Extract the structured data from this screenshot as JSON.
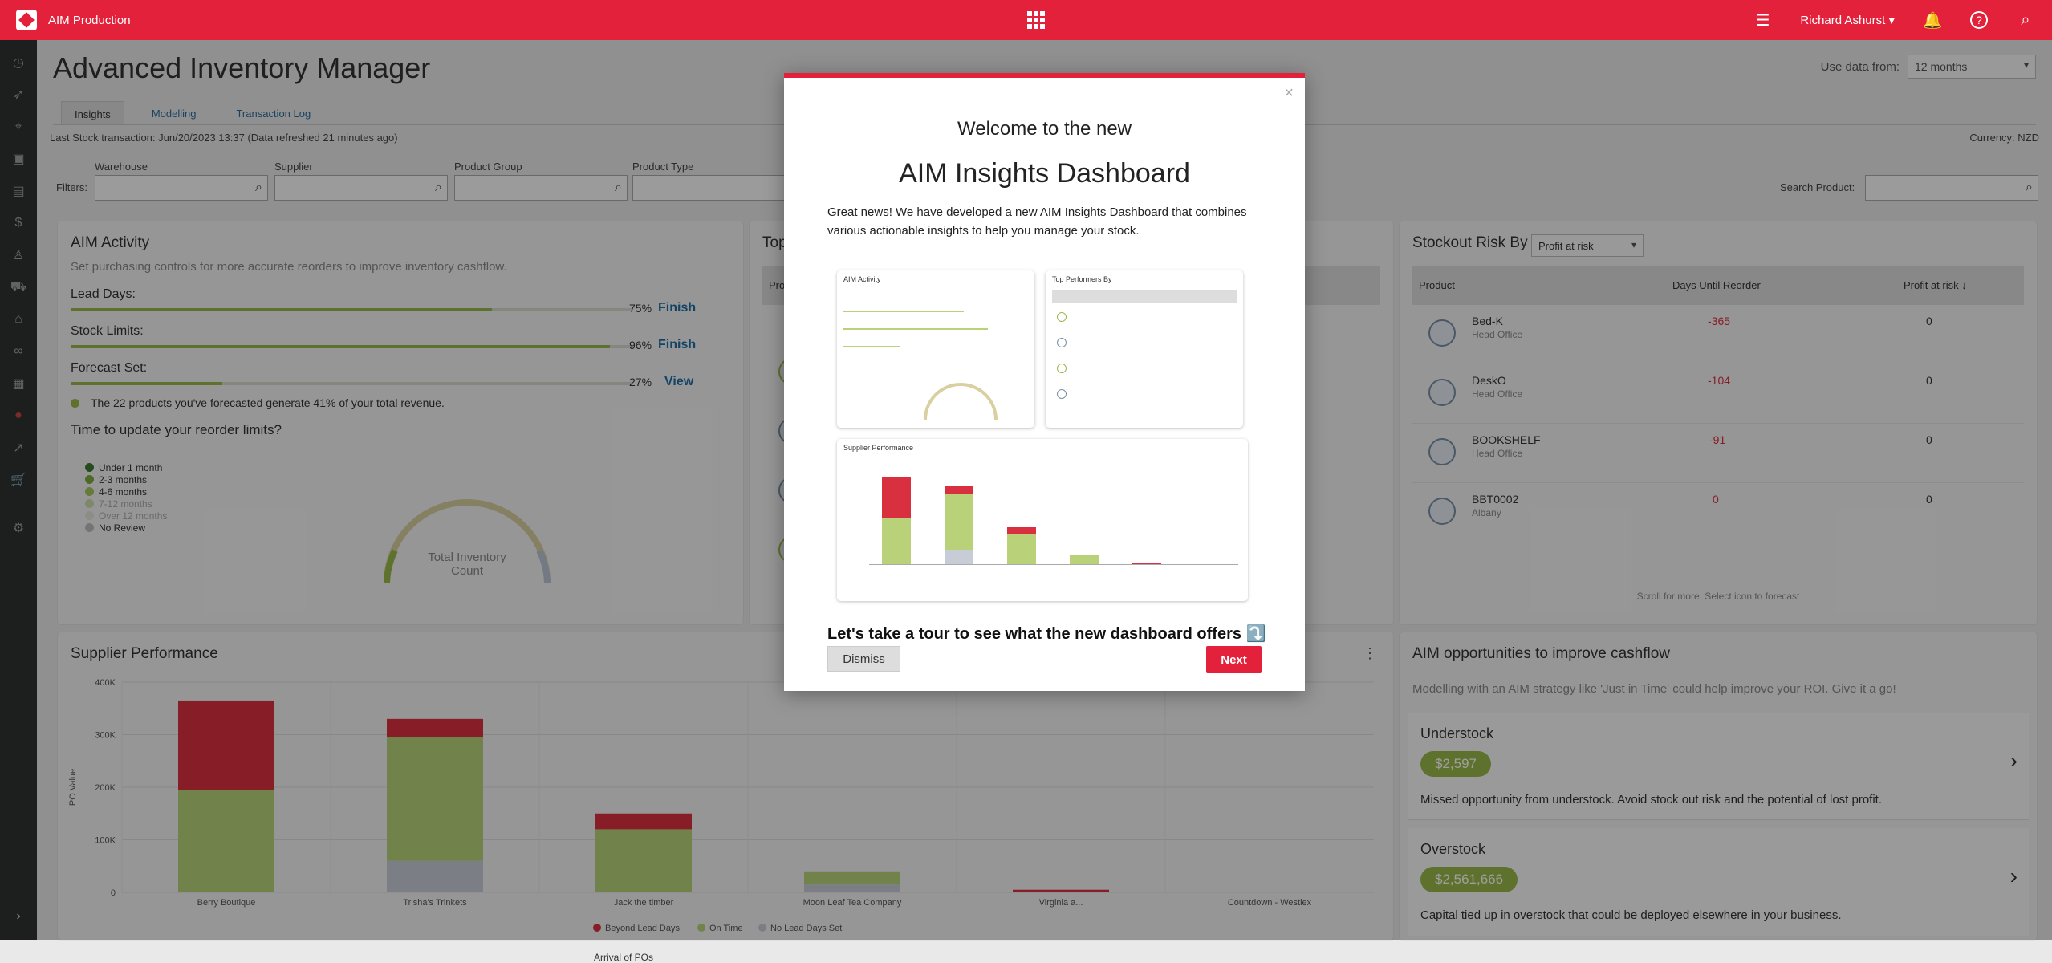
{
  "topbar": {
    "app_name": "AIM Production",
    "user_name": "Richard Ashurst",
    "icons": [
      "apps-grid-icon",
      "list-icon",
      "bell-icon",
      "help-icon",
      "search-icon"
    ]
  },
  "sidebar": {
    "icons": [
      "dashboard-icon",
      "rocket-icon",
      "telescope-icon",
      "box-icon",
      "warehouse-icon",
      "dollar-icon",
      "supplier-icon",
      "truck-icon",
      "store-icon",
      "link-icon",
      "table-icon",
      "status-icon",
      "chart-icon",
      "cart-icon",
      "gear-icon",
      "expand-icon"
    ]
  },
  "page": {
    "title": "Advanced Inventory Manager",
    "use_data_label": "Use data from:",
    "use_data_value": "12 months",
    "tabs": [
      {
        "label": "Insights",
        "active": true
      },
      {
        "label": "Modelling",
        "active": false
      },
      {
        "label": "Transaction Log",
        "active": false
      }
    ],
    "last_stock": "Last Stock transaction: Jun/20/2023 13:37 (Data refreshed 21 minutes ago)",
    "currency": "Currency:  NZD"
  },
  "filters": {
    "label": "Filters:",
    "fields": [
      "Warehouse",
      "Supplier",
      "Product Group",
      "Product Type"
    ],
    "search_label": "Search Product:"
  },
  "aim_activity": {
    "title": "AIM Activity",
    "subtitle": "Set purchasing controls for more accurate reorders to improve inventory cashflow.",
    "rows": [
      {
        "label": "Lead Days:",
        "pct": "75%",
        "pct_value": 0.75,
        "action": "Finish"
      },
      {
        "label": "Stock Limits:",
        "pct": "96%",
        "pct_value": 0.96,
        "action": "Finish"
      },
      {
        "label": "Forecast Set:",
        "pct": "27%",
        "pct_value": 0.27,
        "action": "View"
      }
    ],
    "forecast_note": "The 22 products you've forecasted generate 41% of your total revenue.",
    "reorder_title": "Time to update your reorder limits?",
    "legend": [
      "Under 1 month",
      "2-3 months",
      "4-6 months",
      "7-12 months",
      "Over 12 months",
      "No Review"
    ],
    "gauge_label": "Total Inventory Count"
  },
  "top_performers": {
    "title": "Top Performers By",
    "header": "Product"
  },
  "stockout": {
    "title": "Stockout Risk By",
    "select": "Profit at risk",
    "columns": [
      "Product",
      "Days Until Reorder",
      "Profit at risk ↓"
    ],
    "rows": [
      {
        "name": "Bed-K",
        "location": "Head Office",
        "days": "-365",
        "profit": "0"
      },
      {
        "name": "DeskO",
        "location": "Head Office",
        "days": "-104",
        "profit": "0"
      },
      {
        "name": "BOOKSHELF",
        "location": "Head Office",
        "days": "-91",
        "profit": "0"
      },
      {
        "name": "BBT0002",
        "location": "Albany",
        "days": "0",
        "profit": "0"
      }
    ],
    "footer": "Scroll for more. Select icon to forecast"
  },
  "supplier_performance": {
    "title": "Supplier Performance",
    "legend_title": "Arrival of POs",
    "legend": [
      "Beyond Lead Days",
      "On Time",
      "No Lead Days Set"
    ]
  },
  "chart_data": {
    "type": "bar",
    "title": "Supplier Performance",
    "ylabel": "PO Value",
    "xlabel": "",
    "ylim": [
      0,
      400000
    ],
    "yticks": [
      "0",
      "100K",
      "200K",
      "300K",
      "400K"
    ],
    "categories": [
      "Berry Boutique",
      "Trisha's Trinkets",
      "Jack the timber",
      "Moon Leaf Tea Company",
      "Virginia a...",
      "Countdown - Westlex"
    ],
    "series": [
      {
        "name": "No Lead Days Set",
        "color": "#c7ccd6",
        "values": [
          0,
          60000,
          0,
          15000,
          0,
          0
        ]
      },
      {
        "name": "On Time",
        "color": "#b9d27a",
        "values": [
          195000,
          235000,
          120000,
          25000,
          0,
          0
        ]
      },
      {
        "name": "Beyond Lead Days",
        "color": "#d9303f",
        "values": [
          170000,
          35000,
          30000,
          0,
          5000,
          0
        ]
      }
    ]
  },
  "opportunities": {
    "title": "AIM opportunities to improve cashflow",
    "subtitle": "Modelling with an AIM strategy like 'Just in Time' could help improve your ROI. Give it a go!",
    "items": [
      {
        "title": "Understock",
        "amount": "$2,597",
        "desc": "Missed opportunity from understock. Avoid stock out risk and the potential of lost profit."
      },
      {
        "title": "Overstock",
        "amount": "$2,561,666",
        "desc": "Capital tied up in overstock that could be deployed elsewhere in your business."
      }
    ]
  },
  "modal": {
    "heading_small": "Welcome to the new",
    "heading_large": "AIM Insights Dashboard",
    "body": "Great news! We have developed a new AIM Insights Dashboard that combines various actionable insights to help you manage your stock.",
    "tour": "Let's take a tour to see what the new dashboard offers ⤵️",
    "dismiss": "Dismiss",
    "next": "Next",
    "preview": {
      "activity_title": "AIM Activity",
      "performers_title": "Top Performers By",
      "supplier_title": "Supplier Performance"
    }
  }
}
